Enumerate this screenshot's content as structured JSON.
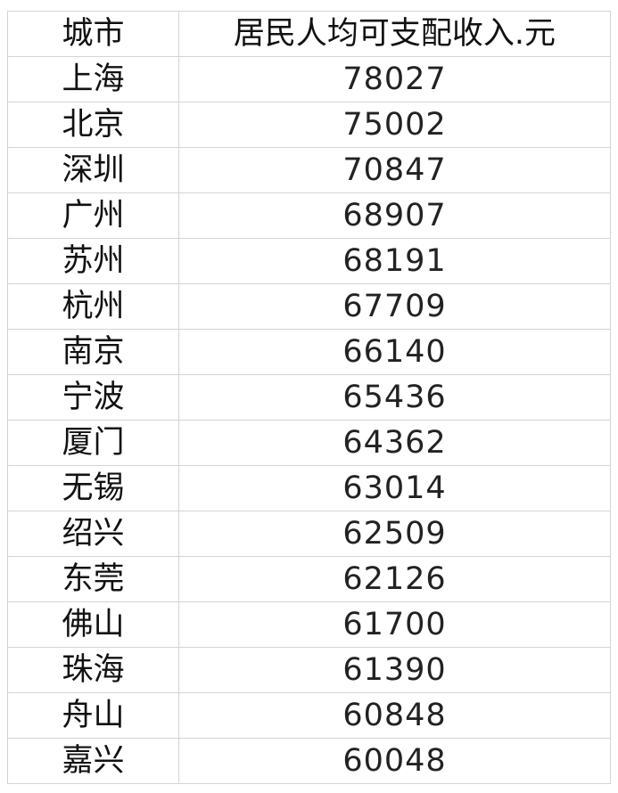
{
  "table": {
    "header": [
      "城市",
      "居民人均可支配收入.元"
    ],
    "rows": [
      [
        "上海",
        78027
      ],
      [
        "北京",
        75002
      ],
      [
        "深圳",
        70847
      ],
      [
        "广州",
        68907
      ],
      [
        "苏州",
        68191
      ],
      [
        "杭州",
        67709
      ],
      [
        "南京",
        66140
      ],
      [
        "宁波",
        65436
      ],
      [
        "厦门",
        64362
      ],
      [
        "无锡",
        63014
      ],
      [
        "绍兴",
        62509
      ],
      [
        "东莞",
        62126
      ],
      [
        "佛山",
        61700
      ],
      [
        "珠海",
        61390
      ],
      [
        "舟山",
        60848
      ],
      [
        "嘉兴",
        60048
      ]
    ]
  }
}
